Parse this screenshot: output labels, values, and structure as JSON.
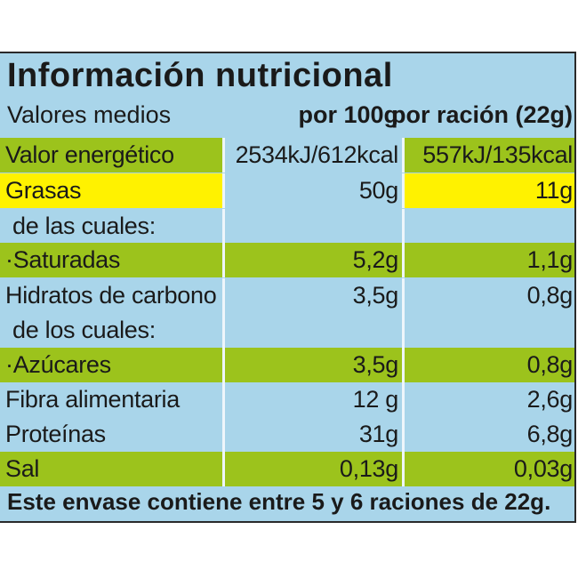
{
  "header": {
    "title": "Información nutricional",
    "subtitle": "Valores medios",
    "col1": "por 100g",
    "col2": "por ración (22g)"
  },
  "table": {
    "rows": [
      [
        "Valor energético",
        "2534kJ/612kcal",
        "557kJ/135kcal"
      ],
      [
        "Grasas",
        "50g",
        "11g"
      ],
      [
        "de las cuales:",
        null,
        null
      ],
      [
        "·Saturadas",
        "5,2g",
        "1,1g"
      ],
      [
        "Hidratos de carbono",
        "3,5g",
        "0,8g"
      ],
      [
        "de los cuales:",
        null,
        null
      ],
      [
        "·Azúcares",
        "3,5g",
        "0,8g"
      ],
      [
        "Fibra alimentaria",
        "12 g",
        "2,6g"
      ],
      [
        "Proteínas",
        "31g",
        "6,8g"
      ],
      [
        "Sal",
        "0,13g",
        "0,03g"
      ]
    ]
  },
  "footer": "Este envase contiene entre 5 y 6 raciones de 22g."
}
